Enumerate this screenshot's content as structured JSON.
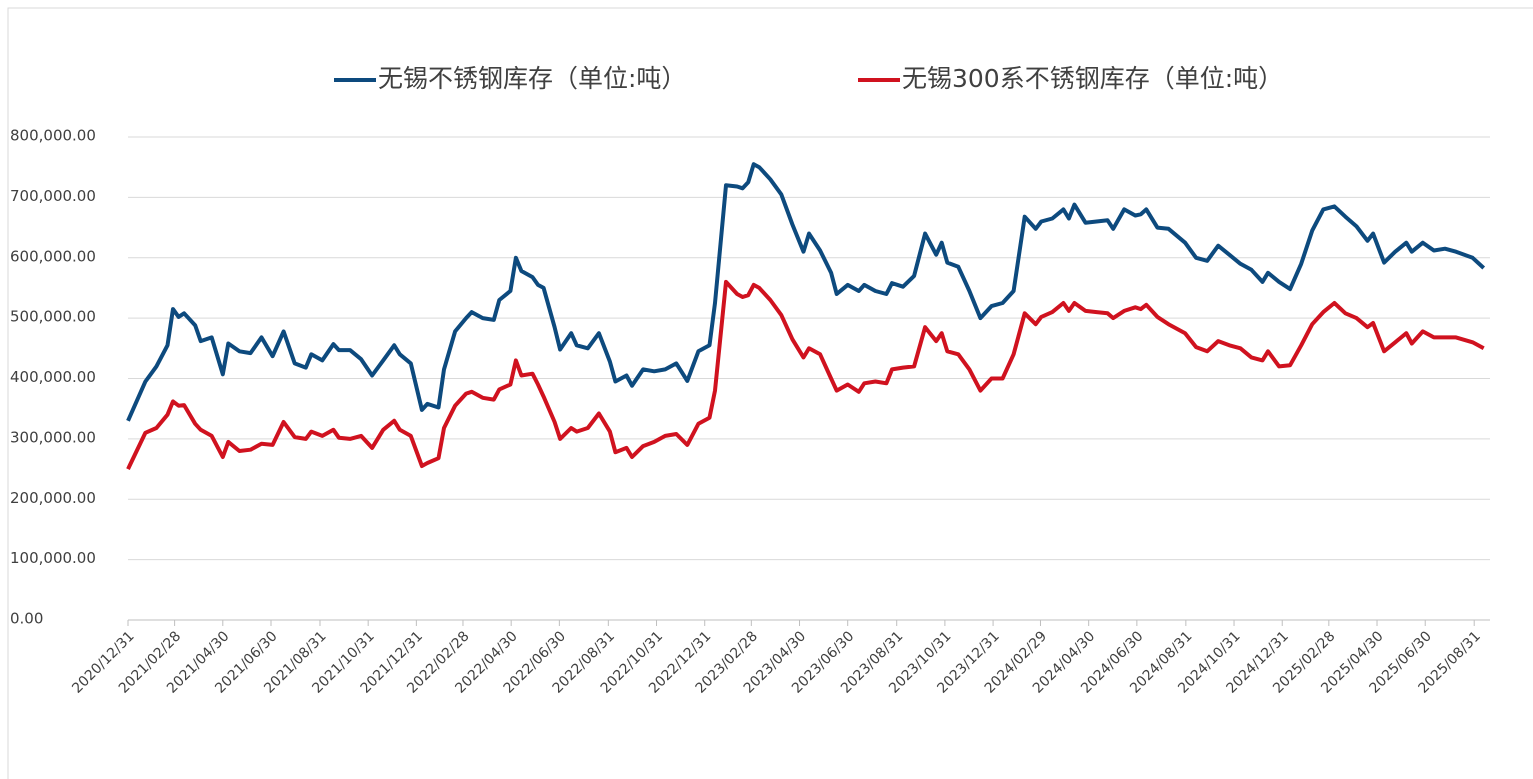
{
  "chart_data": {
    "type": "line",
    "x": [
      "2020/12/31",
      "2021/01/22",
      "2021/02/05",
      "2021/02/19",
      "2021/02/26",
      "2021/03/05",
      "2021/03/12",
      "2021/03/26",
      "2021/04/02",
      "2021/04/16",
      "2021/04/30",
      "2021/05/07",
      "2021/05/21",
      "2021/06/04",
      "2021/06/18",
      "2021/07/02",
      "2021/07/16",
      "2021/07/30",
      "2021/08/13",
      "2021/08/20",
      "2021/09/03",
      "2021/09/17",
      "2021/09/24",
      "2021/10/08",
      "2021/10/22",
      "2021/11/05",
      "2021/11/19",
      "2021/12/03",
      "2021/12/10",
      "2021/12/24",
      "2022/01/07",
      "2022/01/14",
      "2022/01/28",
      "2022/02/04",
      "2022/02/18",
      "2022/03/04",
      "2022/03/11",
      "2022/03/25",
      "2022/04/08",
      "2022/04/15",
      "2022/04/29",
      "2022/05/06",
      "2022/05/13",
      "2022/05/27",
      "2022/06/03",
      "2022/06/10",
      "2022/06/24",
      "2022/07/01",
      "2022/07/15",
      "2022/07/22",
      "2022/08/05",
      "2022/08/19",
      "2022/09/02",
      "2022/09/09",
      "2022/09/23",
      "2022/09/30",
      "2022/10/14",
      "2022/10/28",
      "2022/11/11",
      "2022/11/25",
      "2022/12/09",
      "2022/12/23",
      "2023/01/06",
      "2023/01/13",
      "2023/01/27",
      "2023/02/10",
      "2023/02/17",
      "2023/02/24",
      "2023/03/03",
      "2023/03/10",
      "2023/03/24",
      "2023/04/07",
      "2023/04/21",
      "2023/05/05",
      "2023/05/12",
      "2023/05/26",
      "2023/06/09",
      "2023/06/16",
      "2023/06/30",
      "2023/07/14",
      "2023/07/21",
      "2023/08/04",
      "2023/08/18",
      "2023/08/25",
      "2023/09/08",
      "2023/09/22",
      "2023/10/06",
      "2023/10/20",
      "2023/10/27",
      "2023/11/03",
      "2023/11/17",
      "2023/12/01",
      "2023/12/15",
      "2023/12/29",
      "2024/01/12",
      "2024/01/26",
      "2024/02/09",
      "2024/02/23",
      "2024/03/01",
      "2024/03/15",
      "2024/03/29",
      "2024/04/05",
      "2024/04/12",
      "2024/04/26",
      "2024/05/10",
      "2024/05/24",
      "2024/05/31",
      "2024/06/14",
      "2024/06/28",
      "2024/07/05",
      "2024/07/12",
      "2024/07/26",
      "2024/08/09",
      "2024/08/30",
      "2024/09/13",
      "2024/09/27",
      "2024/10/11",
      "2024/10/25",
      "2024/11/08",
      "2024/11/22",
      "2024/12/06",
      "2024/12/13",
      "2024/12/27",
      "2025/01/10",
      "2025/01/24",
      "2025/02/07",
      "2025/02/21",
      "2025/03/07",
      "2025/03/21",
      "2025/04/04",
      "2025/04/18",
      "2025/04/25",
      "2025/05/09",
      "2025/05/23",
      "2025/06/06",
      "2025/06/13",
      "2025/06/27",
      "2025/07/11",
      "2025/07/25",
      "2025/08/08",
      "2025/08/29",
      "2025/09/12"
    ],
    "series": [
      {
        "name": "无锡不锈钢库存（单位:吨）",
        "color": "#0d4a7e",
        "values": [
          330000,
          395000,
          420000,
          455000,
          515000,
          502000,
          508000,
          488000,
          462000,
          468000,
          407000,
          458000,
          445000,
          442000,
          468000,
          437000,
          478000,
          425000,
          418000,
          440000,
          430000,
          457000,
          447000,
          447000,
          432000,
          405000,
          430000,
          455000,
          440000,
          425000,
          348000,
          358000,
          352000,
          415000,
          478000,
          500000,
          510000,
          500000,
          497000,
          530000,
          545000,
          600000,
          578000,
          568000,
          555000,
          550000,
          485000,
          448000,
          475000,
          455000,
          450000,
          475000,
          428000,
          395000,
          405000,
          388000,
          415000,
          412000,
          415000,
          425000,
          396000,
          445000,
          455000,
          525000,
          720000,
          718000,
          715000,
          725000,
          755000,
          750000,
          730000,
          705000,
          655000,
          610000,
          640000,
          612000,
          575000,
          540000,
          555000,
          545000,
          555000,
          545000,
          540000,
          558000,
          552000,
          570000,
          640000,
          605000,
          625000,
          592000,
          585000,
          545000,
          500000,
          520000,
          525000,
          545000,
          668000,
          648000,
          660000,
          665000,
          680000,
          665000,
          688000,
          658000,
          660000,
          662000,
          648000,
          680000,
          670000,
          672000,
          680000,
          650000,
          648000,
          625000,
          600000,
          595000,
          620000,
          605000,
          590000,
          580000,
          560000,
          575000,
          560000,
          548000,
          590000,
          645000,
          680000,
          685000,
          668000,
          652000,
          628000,
          640000,
          592000,
          610000,
          625000,
          610000,
          625000,
          612000,
          615000,
          610000,
          600000,
          583000
        ]
      },
      {
        "name": "无锡300系不锈钢库存（单位:吨）",
        "color": "#d0121f",
        "values": [
          250000,
          310000,
          318000,
          340000,
          362000,
          355000,
          356000,
          325000,
          315000,
          305000,
          270000,
          295000,
          280000,
          282000,
          292000,
          290000,
          328000,
          303000,
          300000,
          312000,
          305000,
          315000,
          302000,
          300000,
          305000,
          285000,
          315000,
          330000,
          315000,
          305000,
          255000,
          260000,
          268000,
          318000,
          355000,
          375000,
          378000,
          368000,
          365000,
          382000,
          390000,
          430000,
          405000,
          408000,
          390000,
          370000,
          328000,
          300000,
          318000,
          312000,
          318000,
          342000,
          312000,
          278000,
          285000,
          270000,
          288000,
          295000,
          305000,
          308000,
          290000,
          325000,
          335000,
          380000,
          560000,
          540000,
          535000,
          538000,
          555000,
          550000,
          530000,
          505000,
          465000,
          435000,
          450000,
          440000,
          400000,
          380000,
          390000,
          378000,
          392000,
          395000,
          392000,
          415000,
          418000,
          420000,
          485000,
          462000,
          475000,
          445000,
          440000,
          415000,
          380000,
          400000,
          400000,
          440000,
          508000,
          490000,
          502000,
          510000,
          525000,
          512000,
          525000,
          512000,
          510000,
          508000,
          500000,
          512000,
          518000,
          515000,
          522000,
          502000,
          490000,
          475000,
          452000,
          445000,
          462000,
          455000,
          450000,
          435000,
          430000,
          445000,
          420000,
          422000,
          455000,
          490000,
          510000,
          525000,
          508000,
          500000,
          485000,
          492000,
          445000,
          460000,
          475000,
          458000,
          478000,
          468000,
          468000,
          468000,
          460000,
          450000
        ]
      }
    ],
    "xlim": [
      "2020/12/31",
      "2025/09/20"
    ],
    "xticks": [
      "2020/12/31",
      "2021/02/28",
      "2021/04/30",
      "2021/06/30",
      "2021/08/31",
      "2021/10/31",
      "2021/12/31",
      "2022/02/28",
      "2022/04/30",
      "2022/06/30",
      "2022/08/31",
      "2022/10/31",
      "2022/12/31",
      "2023/02/28",
      "2023/04/30",
      "2023/06/30",
      "2023/08/31",
      "2023/10/31",
      "2023/12/31",
      "2024/02/29",
      "2024/04/30",
      "2024/06/30",
      "2024/08/31",
      "2024/10/31",
      "2024/12/31",
      "2025/02/28",
      "2025/04/30",
      "2025/06/30",
      "2025/08/31"
    ],
    "ylim": [
      0,
      800000
    ],
    "yticks": [
      {
        "value": 0,
        "label": "0.00"
      },
      {
        "value": 100000,
        "label": "100,000.00"
      },
      {
        "value": 200000,
        "label": "200,000.00"
      },
      {
        "value": 300000,
        "label": "300,000.00"
      },
      {
        "value": 400000,
        "label": "400,000.00"
      },
      {
        "value": 500000,
        "label": "500,000.00"
      },
      {
        "value": 600000,
        "label": "600,000.00"
      },
      {
        "value": 700000,
        "label": "700,000.00"
      },
      {
        "value": 800000,
        "label": "800,000.00"
      }
    ],
    "grid": true
  }
}
